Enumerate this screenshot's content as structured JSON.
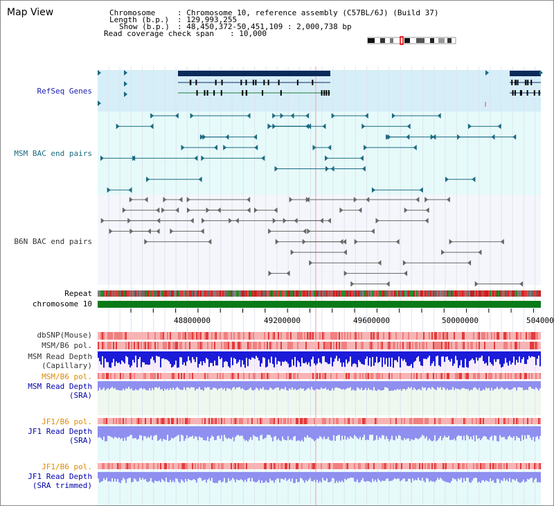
{
  "header": {
    "title": "Map View",
    "chromosome_label": "Chromosome",
    "chromosome_value": ": Chromosome 10, reference assembly (C57BL/6J) (Build 37)",
    "length_label": "Length (b.p.)",
    "length_value": ": 129,993,255",
    "show_label": "Show (b.p.)",
    "show_value": ": 48,450,372-50,451,109 : 2,000,738 bp",
    "read_span_label": "Read coverage check span",
    "read_span_value": ": 10,000"
  },
  "tracks": {
    "refseq": "RefSeq Genes",
    "msm_bac": "MSM BAC end pairs",
    "b6n_bac": "B6N BAC end pairs",
    "repeat": "Repeat",
    "chromosome": "chromosome 10",
    "dbsnp": "dbSNP(Mouse)",
    "msm_b6_pol_1": "MSM/B6 pol.",
    "msm_read_depth_cap": "MSM Read Depth\n(Capillary)",
    "msm_b6_pol_2": "MSM/B6 pol.",
    "msm_read_depth_sra": "MSM Read Depth\n(SRA)",
    "jf1_b6_pol_1": "JF1/B6 pol.",
    "jf1_read_depth_sra": "JF1 Read Depth\n(SRA)",
    "jf1_b6_pol_2": "JF1/B6 pol.",
    "jf1_read_depth_trimmed": "JF1 Read Depth\n(SRA trimmed)"
  },
  "axis": {
    "ticks": [
      "48800000",
      "49200000",
      "49600000",
      "50000000",
      "504000"
    ]
  },
  "colors": {
    "refseq_bg": "#d6eef8",
    "refseq_bar": "#0a2a5a",
    "refseq_gene": "#1f7a3a",
    "msm_bg": "#e6fafa",
    "msm_feature": "#1b6a80",
    "b6n_bg": "#f4f6fb",
    "b6n_feature": "#666666",
    "chromosome_bar": "#0a7a18",
    "pol_red": "#e23b3b",
    "pol_light": "#f7b4b4",
    "depth_blue": "#1b1bd8",
    "depth_light": "#8f8ff0",
    "label_refseq": "#1b1bb0",
    "label_msm": "#1b6a80",
    "label_b6n": "#333333",
    "label_orange": "#e08a00",
    "label_blue": "#0000aa"
  }
}
